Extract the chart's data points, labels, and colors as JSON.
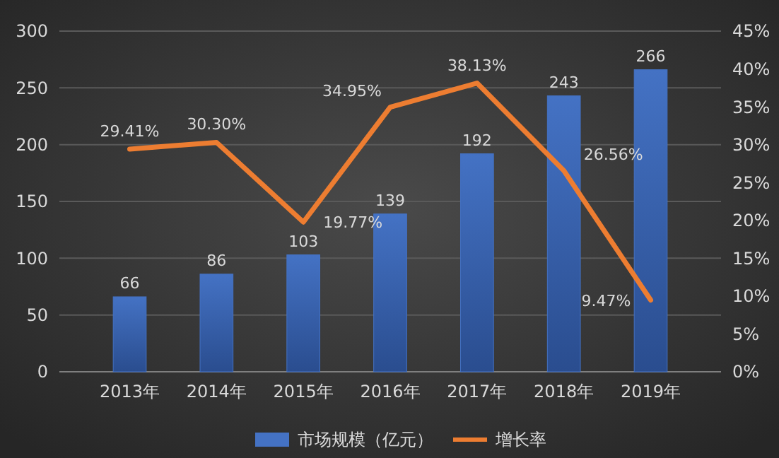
{
  "chart_data": {
    "type": "bar",
    "categories": [
      "2013年",
      "2014年",
      "2015年",
      "2016年",
      "2017年",
      "2018年",
      "2019年"
    ],
    "series": [
      {
        "name": "市场规模（亿元）",
        "color": "#4472c4",
        "values": [
          66,
          86,
          103,
          139,
          192,
          243,
          266
        ],
        "value_labels": [
          "66",
          "86",
          "103",
          "139",
          "192",
          "243",
          "266"
        ]
      },
      {
        "name": "增长率",
        "type": "line",
        "axis": "y2",
        "color": "#ed7d31",
        "values": [
          29.41,
          30.3,
          19.77,
          34.95,
          38.13,
          26.56,
          9.47
        ],
        "value_labels": [
          "29.41%",
          "30.30%",
          "19.77%",
          "34.95%",
          "38.13%",
          "26.56%",
          "9.47%"
        ]
      }
    ],
    "ylim": [
      0,
      300
    ],
    "yticks": [
      0,
      50,
      100,
      150,
      200,
      250,
      300
    ],
    "y2lim": [
      0,
      45
    ],
    "y2ticks": [
      {
        "value": 0,
        "label": "0%"
      },
      {
        "value": 5,
        "label": "5%"
      },
      {
        "value": 10,
        "label": "10%"
      },
      {
        "value": 15,
        "label": "15%"
      },
      {
        "value": 20,
        "label": "20%"
      },
      {
        "value": 25,
        "label": "25%"
      },
      {
        "value": 30,
        "label": "30%"
      },
      {
        "value": 35,
        "label": "35%"
      },
      {
        "value": 40,
        "label": "40%"
      },
      {
        "value": 45,
        "label": "45%"
      }
    ],
    "grid": "y",
    "legend": "bottom",
    "marker": "none",
    "line_style": "solid"
  }
}
